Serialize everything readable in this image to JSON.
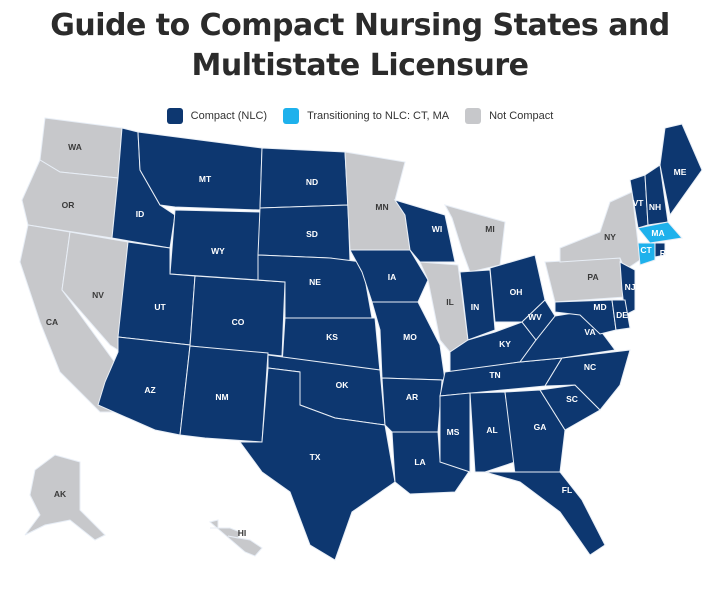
{
  "title_line1": "Guide to Compact Nursing States and",
  "title_line2": "Multistate Licensure",
  "legend": [
    {
      "key": "compact",
      "label": "Compact (NLC)",
      "color": "#0d3770"
    },
    {
      "key": "transition",
      "label": "Transitioning to NLC: CT, MA",
      "color": "#1eb1ec"
    },
    {
      "key": "not",
      "label": "Not Compact",
      "color": "#c7c8cb"
    }
  ],
  "states": [
    {
      "abbr": "WA",
      "status": "not"
    },
    {
      "abbr": "OR",
      "status": "not"
    },
    {
      "abbr": "CA",
      "status": "not"
    },
    {
      "abbr": "NV",
      "status": "not"
    },
    {
      "abbr": "ID",
      "status": "compact"
    },
    {
      "abbr": "MT",
      "status": "compact"
    },
    {
      "abbr": "WY",
      "status": "compact"
    },
    {
      "abbr": "UT",
      "status": "compact"
    },
    {
      "abbr": "AZ",
      "status": "compact"
    },
    {
      "abbr": "CO",
      "status": "compact"
    },
    {
      "abbr": "NM",
      "status": "compact"
    },
    {
      "abbr": "ND",
      "status": "compact"
    },
    {
      "abbr": "SD",
      "status": "compact"
    },
    {
      "abbr": "NE",
      "status": "compact"
    },
    {
      "abbr": "KS",
      "status": "compact"
    },
    {
      "abbr": "OK",
      "status": "compact"
    },
    {
      "abbr": "TX",
      "status": "compact"
    },
    {
      "abbr": "MN",
      "status": "not"
    },
    {
      "abbr": "IA",
      "status": "compact"
    },
    {
      "abbr": "MO",
      "status": "compact"
    },
    {
      "abbr": "AR",
      "status": "compact"
    },
    {
      "abbr": "LA",
      "status": "compact"
    },
    {
      "abbr": "WI",
      "status": "compact"
    },
    {
      "abbr": "IL",
      "status": "not"
    },
    {
      "abbr": "MI",
      "status": "not"
    },
    {
      "abbr": "IN",
      "status": "compact"
    },
    {
      "abbr": "OH",
      "status": "compact"
    },
    {
      "abbr": "KY",
      "status": "compact"
    },
    {
      "abbr": "TN",
      "status": "compact"
    },
    {
      "abbr": "MS",
      "status": "compact"
    },
    {
      "abbr": "AL",
      "status": "compact"
    },
    {
      "abbr": "GA",
      "status": "compact"
    },
    {
      "abbr": "FL",
      "status": "compact"
    },
    {
      "abbr": "SC",
      "status": "compact"
    },
    {
      "abbr": "NC",
      "status": "compact"
    },
    {
      "abbr": "VA",
      "status": "compact"
    },
    {
      "abbr": "WV",
      "status": "compact"
    },
    {
      "abbr": "PA",
      "status": "not"
    },
    {
      "abbr": "NY",
      "status": "not"
    },
    {
      "abbr": "NJ",
      "status": "compact"
    },
    {
      "abbr": "MD",
      "status": "compact"
    },
    {
      "abbr": "DE",
      "status": "compact"
    },
    {
      "abbr": "VT",
      "status": "compact"
    },
    {
      "abbr": "NH",
      "status": "compact"
    },
    {
      "abbr": "ME",
      "status": "compact"
    },
    {
      "abbr": "MA",
      "status": "transition"
    },
    {
      "abbr": "CT",
      "status": "transition"
    },
    {
      "abbr": "RI",
      "status": "compact"
    },
    {
      "abbr": "AK",
      "status": "not"
    },
    {
      "abbr": "HI",
      "status": "not"
    }
  ]
}
